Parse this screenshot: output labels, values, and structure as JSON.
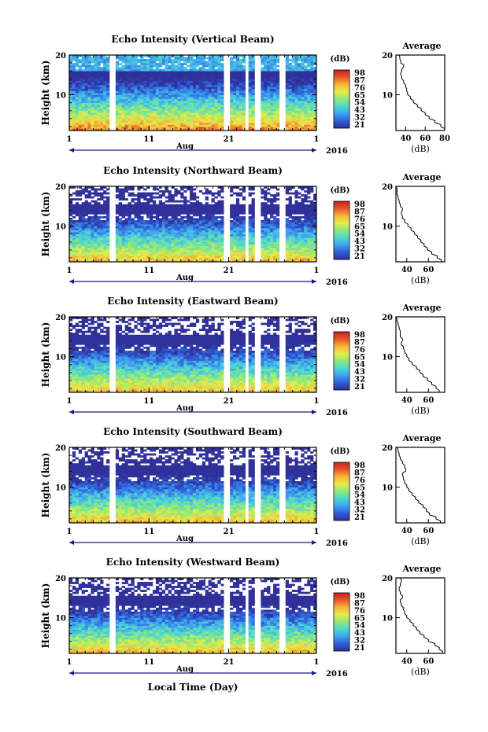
{
  "figure": {
    "xlabel": "Local Time (Day)",
    "month_label": "Aug",
    "year_label": "2016"
  },
  "colorbar": {
    "unit": "(dB)",
    "tick_labels": [
      "98",
      "87",
      "76",
      "65",
      "54",
      "43",
      "32",
      "21"
    ],
    "colors": [
      "#30309a",
      "#2e5fd6",
      "#3da3f0",
      "#4fd8d0",
      "#8ee87a",
      "#e6ec4a",
      "#f7b63a",
      "#e8572a",
      "#c81e1e"
    ]
  },
  "chart_data": [
    {
      "type": "heatmap",
      "title": "Echo Intensity (Vertical Beam)",
      "ylabel": "Height (km)",
      "xlim": [
        1,
        32
      ],
      "ylim": [
        1,
        20
      ],
      "x_ticks": [
        "1",
        "11",
        "21",
        "1"
      ],
      "y_ticks": [
        "20",
        "10"
      ],
      "missing_day_gaps": [
        6.3,
        20.9,
        23.3,
        24.5,
        27.7
      ],
      "average_profile": {
        "title": "Average",
        "xlabel": "(dB)",
        "x_ticks": [
          "40",
          "60",
          "80"
        ],
        "xlim": [
          30,
          80
        ],
        "ylim": [
          1,
          20
        ],
        "height_km": [
          1,
          2,
          3,
          4,
          5,
          6,
          7,
          8,
          9,
          10,
          11,
          12,
          13,
          14,
          15,
          16,
          17,
          18,
          19,
          20
        ],
        "intensity_db": [
          80,
          76,
          70,
          64,
          60,
          56,
          52,
          48,
          45,
          42,
          41,
          40,
          38,
          36,
          35,
          36,
          38,
          35,
          34,
          33
        ]
      }
    },
    {
      "type": "heatmap",
      "title": "Echo Intensity (Northward Beam)",
      "ylabel": "Height (km)",
      "xlim": [
        1,
        32
      ],
      "ylim": [
        1,
        20
      ],
      "x_ticks": [
        "1",
        "11",
        "21",
        "1"
      ],
      "y_ticks": [
        "20",
        "10"
      ],
      "missing_day_gaps": [
        6.3,
        20.9,
        23.3,
        24.5,
        27.7
      ],
      "average_profile": {
        "title": "Average",
        "xlabel": "(dB)",
        "x_ticks": [
          "40",
          "60"
        ],
        "xlim": [
          30,
          75
        ],
        "ylim": [
          1,
          20
        ],
        "height_km": [
          1,
          2,
          3,
          4,
          5,
          6,
          7,
          8,
          9,
          10,
          11,
          12,
          13,
          14,
          15,
          16,
          17,
          18,
          19,
          20
        ],
        "intensity_db": [
          72,
          68,
          63,
          59,
          56,
          53,
          50,
          47,
          44,
          41,
          38,
          36,
          35,
          36,
          34,
          33,
          32,
          31,
          31,
          30
        ]
      }
    },
    {
      "type": "heatmap",
      "title": "Echo Intensity (Eastward Beam)",
      "ylabel": "Height (km)",
      "xlim": [
        1,
        32
      ],
      "ylim": [
        1,
        20
      ],
      "x_ticks": [
        "1",
        "11",
        "21",
        "1"
      ],
      "y_ticks": [
        "20",
        "10"
      ],
      "missing_day_gaps": [
        6.3,
        20.9,
        23.3,
        24.5,
        27.7
      ],
      "average_profile": {
        "title": "Average",
        "xlabel": "(dB)",
        "x_ticks": [
          "40",
          "60"
        ],
        "xlim": [
          30,
          75
        ],
        "ylim": [
          1,
          20
        ],
        "height_km": [
          1,
          2,
          3,
          4,
          5,
          6,
          7,
          8,
          9,
          10,
          11,
          12,
          13,
          14,
          15,
          16,
          17,
          18,
          19,
          20
        ],
        "intensity_db": [
          70,
          67,
          63,
          59,
          55,
          52,
          49,
          45,
          42,
          40,
          38,
          37,
          35,
          36,
          34,
          34,
          33,
          32,
          31,
          30
        ]
      }
    },
    {
      "type": "heatmap",
      "title": "Echo Intensity (Southward Beam)",
      "ylabel": "Height (km)",
      "xlim": [
        1,
        32
      ],
      "ylim": [
        1,
        20
      ],
      "x_ticks": [
        "1",
        "11",
        "21",
        "1"
      ],
      "y_ticks": [
        "20",
        "10"
      ],
      "missing_day_gaps": [
        6.3,
        20.9,
        23.3,
        24.5,
        27.7
      ],
      "average_profile": {
        "title": "Average",
        "xlabel": "(dB)",
        "x_ticks": [
          "40",
          "60"
        ],
        "xlim": [
          30,
          75
        ],
        "ylim": [
          1,
          20
        ],
        "height_km": [
          1,
          2,
          3,
          4,
          5,
          6,
          7,
          8,
          9,
          10,
          11,
          12,
          13,
          14,
          15,
          16,
          17,
          18,
          19,
          20
        ],
        "intensity_db": [
          71,
          67,
          61,
          58,
          55,
          51,
          48,
          45,
          42,
          40,
          38,
          37,
          36,
          39,
          38,
          36,
          34,
          33,
          32,
          31
        ]
      }
    },
    {
      "type": "heatmap",
      "title": "Echo Intensity (Westward Beam)",
      "ylabel": "Height (km)",
      "xlim": [
        1,
        32
      ],
      "ylim": [
        1,
        20
      ],
      "x_ticks": [
        "1",
        "11",
        "21",
        "1"
      ],
      "y_ticks": [
        "20",
        "10"
      ],
      "missing_day_gaps": [
        6.3,
        20.9,
        23.3,
        24.5,
        27.7
      ],
      "average_profile": {
        "title": "Average",
        "xlabel": "(dB)",
        "x_ticks": [
          "40",
          "60"
        ],
        "xlim": [
          30,
          75
        ],
        "ylim": [
          1,
          20
        ],
        "height_km": [
          1,
          2,
          3,
          4,
          5,
          6,
          7,
          8,
          9,
          10,
          11,
          12,
          13,
          14,
          15,
          16,
          17,
          18,
          19,
          20
        ],
        "intensity_db": [
          73,
          70,
          66,
          60,
          56,
          52,
          49,
          46,
          43,
          40,
          38,
          37,
          35,
          34,
          36,
          34,
          33,
          34,
          35,
          34
        ]
      }
    }
  ]
}
